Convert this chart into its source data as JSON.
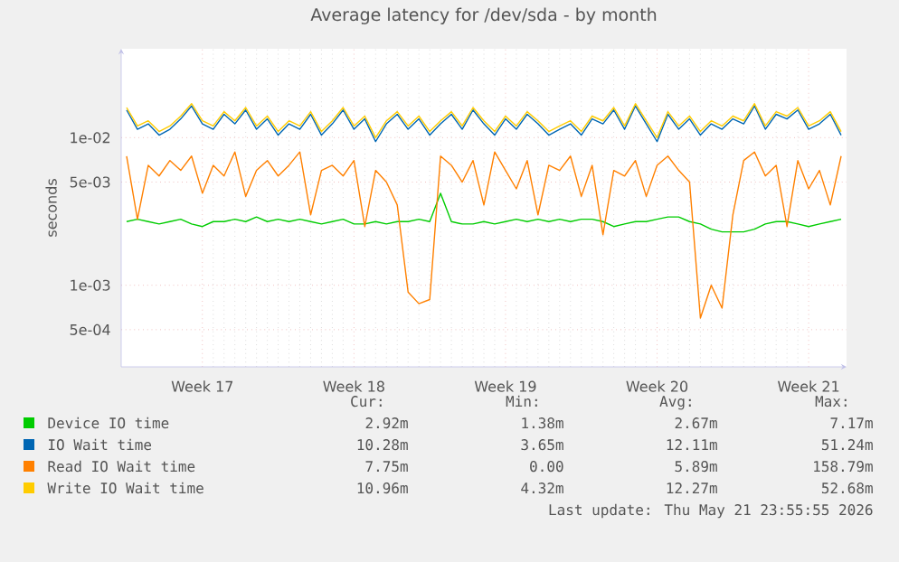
{
  "chart_data": {
    "type": "line",
    "title": "Average latency for /dev/sda - by month",
    "ylabel": "seconds",
    "log": "y",
    "grid": true,
    "legend": "bottom",
    "ylim": [
      0.00028,
      0.04
    ],
    "categories": [
      null,
      null,
      null,
      null,
      null,
      null,
      null,
      "Week 17",
      null,
      null,
      null,
      null,
      null,
      null,
      null,
      null,
      null,
      null,
      null,
      null,
      null,
      "Week 18",
      null,
      null,
      null,
      null,
      null,
      null,
      null,
      null,
      null,
      null,
      null,
      null,
      null,
      "Week 19",
      null,
      null,
      null,
      null,
      null,
      null,
      null,
      null,
      null,
      null,
      null,
      null,
      null,
      "Week 20",
      null,
      null,
      null,
      null,
      null,
      null,
      null,
      null,
      null,
      null,
      null,
      null,
      null,
      "Week 21",
      null,
      null,
      null
    ],
    "yticks": [
      {
        "value": 0.0005,
        "label": "5e-04"
      },
      {
        "value": 0.001,
        "label": "1e-03"
      },
      {
        "value": 0.005,
        "label": "5e-03"
      },
      {
        "value": 0.01,
        "label": "1e-02"
      }
    ],
    "series": [
      {
        "name": "Device IO time",
        "color": "#00cc00",
        "values": [
          0.0027,
          0.0028,
          0.0027,
          0.0026,
          0.0027,
          0.0028,
          0.0026,
          0.0025,
          0.0027,
          0.0027,
          0.0028,
          0.0027,
          0.0029,
          0.0027,
          0.0028,
          0.0027,
          0.0028,
          0.0027,
          0.0026,
          0.0027,
          0.0028,
          0.0026,
          0.0026,
          0.0027,
          0.0026,
          0.0027,
          0.0027,
          0.0028,
          0.0027,
          0.0042,
          0.0027,
          0.0026,
          0.0026,
          0.0027,
          0.0026,
          0.0027,
          0.0028,
          0.0027,
          0.0028,
          0.0027,
          0.0028,
          0.0027,
          0.0028,
          0.0028,
          0.0027,
          0.0025,
          0.0026,
          0.0027,
          0.0027,
          0.0028,
          0.0029,
          0.0029,
          0.0027,
          0.0026,
          0.0024,
          0.0023,
          0.0023,
          0.0023,
          0.0024,
          0.0026,
          0.0027,
          0.0027,
          0.0026,
          0.0025,
          0.0026,
          0.0027,
          0.0028
        ]
      },
      {
        "name": "IO Wait time",
        "color": "#0066b3",
        "values": [
          0.0154,
          0.0114,
          0.0124,
          0.0104,
          0.0114,
          0.0134,
          0.0164,
          0.0124,
          0.0114,
          0.0144,
          0.0124,
          0.0154,
          0.0114,
          0.0134,
          0.0104,
          0.0124,
          0.0114,
          0.0144,
          0.0104,
          0.0124,
          0.0154,
          0.0114,
          0.0134,
          0.0094,
          0.0124,
          0.0144,
          0.0114,
          0.0134,
          0.0104,
          0.0124,
          0.0144,
          0.0114,
          0.0154,
          0.0124,
          0.0104,
          0.0134,
          0.0114,
          0.0144,
          0.0124,
          0.0104,
          0.0114,
          0.0124,
          0.0104,
          0.0134,
          0.0124,
          0.0154,
          0.0114,
          0.0164,
          0.0124,
          0.0094,
          0.0144,
          0.0114,
          0.0134,
          0.0104,
          0.0124,
          0.0114,
          0.0134,
          0.0124,
          0.0164,
          0.0114,
          0.0144,
          0.0134,
          0.0154,
          0.0114,
          0.0124,
          0.0144,
          0.0104
        ]
      },
      {
        "name": "Read IO Wait time",
        "color": "#ff8000",
        "values": [
          0.0075,
          0.0028,
          0.0065,
          0.0055,
          0.007,
          0.006,
          0.0075,
          0.0042,
          0.0065,
          0.0055,
          0.008,
          0.004,
          0.006,
          0.007,
          0.0055,
          0.0065,
          0.008,
          0.003,
          0.006,
          0.0065,
          0.0055,
          0.007,
          0.0025,
          0.006,
          0.005,
          0.0035,
          0.0009,
          0.00075,
          0.0008,
          0.0075,
          0.0065,
          0.005,
          0.007,
          0.0035,
          0.008,
          0.006,
          0.0045,
          0.007,
          0.003,
          0.0065,
          0.006,
          0.0075,
          0.004,
          0.0065,
          0.0022,
          0.006,
          0.0055,
          0.007,
          0.004,
          0.0065,
          0.0075,
          0.006,
          0.005,
          0.0006,
          0.001,
          0.0007,
          0.003,
          0.007,
          0.008,
          0.0055,
          0.0065,
          0.0025,
          0.007,
          0.0045,
          0.006,
          0.0035,
          0.0075
        ]
      },
      {
        "name": "Write IO Wait time",
        "color": "#ffcc00",
        "values": [
          0.016,
          0.012,
          0.013,
          0.011,
          0.012,
          0.014,
          0.017,
          0.013,
          0.012,
          0.015,
          0.013,
          0.016,
          0.012,
          0.014,
          0.011,
          0.013,
          0.012,
          0.015,
          0.011,
          0.013,
          0.016,
          0.012,
          0.014,
          0.01,
          0.013,
          0.015,
          0.012,
          0.014,
          0.011,
          0.013,
          0.015,
          0.012,
          0.016,
          0.013,
          0.011,
          0.014,
          0.012,
          0.015,
          0.013,
          0.011,
          0.012,
          0.013,
          0.011,
          0.014,
          0.013,
          0.016,
          0.012,
          0.017,
          0.013,
          0.01,
          0.015,
          0.012,
          0.014,
          0.011,
          0.013,
          0.012,
          0.014,
          0.013,
          0.017,
          0.012,
          0.015,
          0.014,
          0.016,
          0.012,
          0.013,
          0.015,
          0.011
        ]
      }
    ],
    "annotations": [
      "Cur:",
      "Min:",
      "Avg:",
      "Max:",
      "2.92m",
      "1.38m",
      "2.67m",
      "7.17m",
      "10.28m",
      "3.65m",
      "12.11m",
      "51.24m",
      "7.75m",
      "0.00",
      "5.89m",
      "158.79m",
      "10.96m",
      "4.32m",
      "12.27m",
      "52.68m",
      "Last update: Thu May 21 23:55:55 2026"
    ]
  }
}
